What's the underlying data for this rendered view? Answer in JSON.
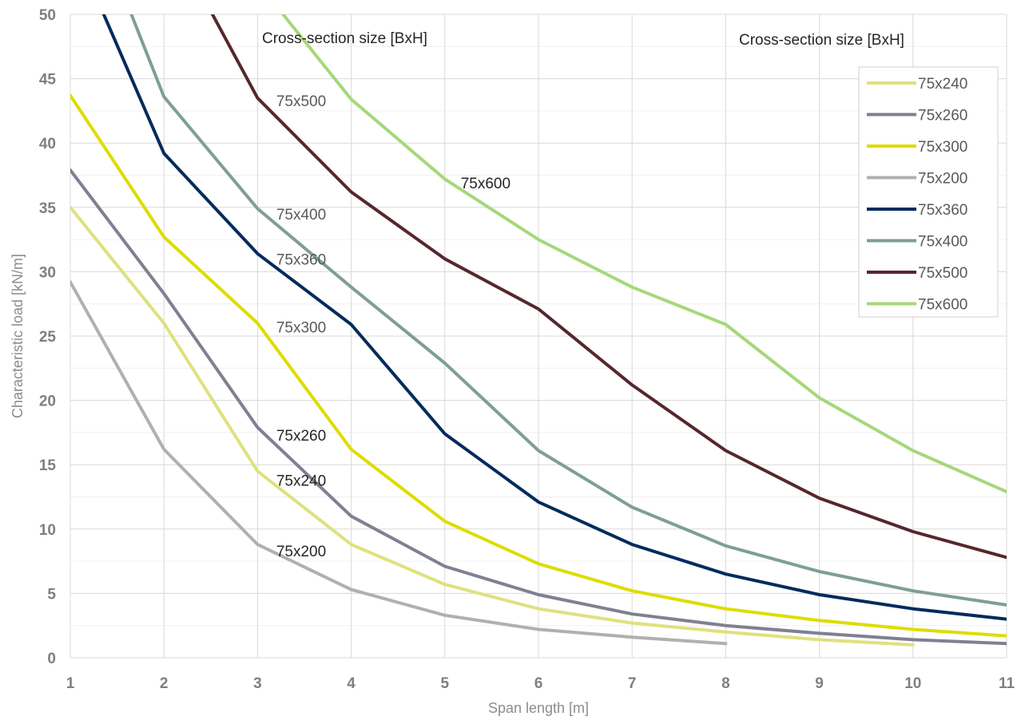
{
  "chart_data": {
    "type": "line",
    "xlabel": "Span length [m]",
    "ylabel": "Characteristic load [kN/m]",
    "xlim": [
      1,
      11
    ],
    "ylim": [
      0,
      50
    ],
    "x_ticks": [
      "1",
      "2",
      "3",
      "4",
      "5",
      "6",
      "7",
      "8",
      "9",
      "10",
      "11"
    ],
    "y_ticks": [
      "0",
      "5",
      "10",
      "15",
      "20",
      "25",
      "30",
      "35",
      "40",
      "45",
      "50"
    ],
    "grid": true,
    "legend_title": "Cross-section size [BxH]",
    "legend_position": "right",
    "plot_header": "Cross-section size [BxH]",
    "series": [
      {
        "name": "75x240",
        "color": "#dfe17e",
        "x": [
          1,
          2,
          3,
          4,
          5,
          6,
          7,
          8,
          9,
          10
        ],
        "y": [
          35.0,
          26.0,
          14.5,
          8.8,
          5.7,
          3.8,
          2.7,
          2.0,
          1.4,
          1.0
        ]
      },
      {
        "name": "75x260",
        "color": "#7f8091",
        "x": [
          1,
          2,
          3,
          4,
          5,
          6,
          7,
          8,
          9,
          10,
          11
        ],
        "y": [
          37.9,
          28.3,
          17.9,
          11.0,
          7.1,
          4.9,
          3.4,
          2.5,
          1.9,
          1.4,
          1.1
        ]
      },
      {
        "name": "75x300",
        "color": "#dedc00",
        "x": [
          1,
          2,
          3,
          4,
          5,
          6,
          7,
          8,
          9,
          10,
          11
        ],
        "y": [
          43.7,
          32.7,
          26.0,
          16.2,
          10.6,
          7.3,
          5.2,
          3.8,
          2.9,
          2.2,
          1.7
        ]
      },
      {
        "name": "75x200",
        "color": "#b0b0b0",
        "x": [
          1,
          2,
          3,
          4,
          5,
          6,
          7,
          8
        ],
        "y": [
          29.2,
          16.2,
          8.8,
          5.3,
          3.3,
          2.2,
          1.6,
          1.1
        ]
      },
      {
        "name": "75x360",
        "color": "#002b5c",
        "x": [
          1,
          2,
          3,
          4,
          5,
          6,
          7,
          8,
          9,
          10,
          11
        ],
        "y": [
          56,
          39.2,
          31.4,
          25.9,
          17.4,
          12.1,
          8.8,
          6.5,
          4.9,
          3.8,
          3.0
        ]
      },
      {
        "name": "75x400",
        "color": "#7ea08f",
        "x": [
          1,
          2,
          3,
          4,
          5,
          6,
          7,
          8,
          9,
          10,
          11
        ],
        "y": [
          62,
          43.6,
          34.9,
          28.8,
          22.9,
          16.1,
          11.7,
          8.7,
          6.7,
          5.2,
          4.1
        ]
      },
      {
        "name": "75x500",
        "color": "#56272d",
        "x": [
          2,
          3,
          4,
          5,
          6,
          7,
          8,
          9,
          10,
          11
        ],
        "y": [
          57,
          43.5,
          36.2,
          31.0,
          27.1,
          21.2,
          16.1,
          12.4,
          9.8,
          7.8
        ]
      },
      {
        "name": "75x600",
        "color": "#a5d87a",
        "x": [
          2.5,
          4,
          5,
          6,
          7,
          8,
          9,
          10,
          11
        ],
        "y": [
          57,
          43.4,
          37.2,
          32.5,
          28.8,
          25.9,
          20.2,
          16.1,
          12.9
        ]
      }
    ],
    "annotations": [
      {
        "text": "75x500",
        "x": 3.2,
        "y": 43.3,
        "dark": false
      },
      {
        "text": "75x600",
        "x": 5.17,
        "y": 36.9,
        "dark": true
      },
      {
        "text": "75x400",
        "x": 3.2,
        "y": 34.5,
        "dark": false
      },
      {
        "text": "75x360",
        "x": 3.2,
        "y": 31.0,
        "dark": false
      },
      {
        "text": "75x300",
        "x": 3.2,
        "y": 25.7,
        "dark": false
      },
      {
        "text": "75x260",
        "x": 3.2,
        "y": 17.3,
        "dark": true
      },
      {
        "text": "75x240",
        "x": 3.2,
        "y": 13.8,
        "dark": true
      },
      {
        "text": "75x200",
        "x": 3.2,
        "y": 8.3,
        "dark": true
      }
    ]
  }
}
